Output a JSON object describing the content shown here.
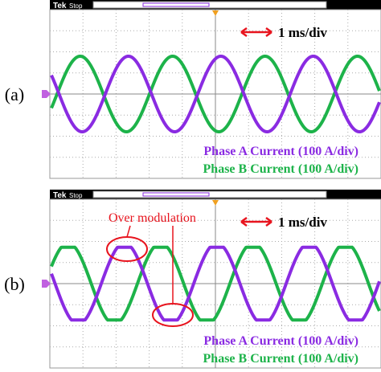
{
  "panels": [
    {
      "label": "(a)",
      "scope_brand": "Tek",
      "scope_state": "Stop",
      "timebase": "1 ms/div",
      "traces": [
        "Phase A Current (100 A/div)",
        "Phase B Current (100 A/div)"
      ]
    },
    {
      "label": "(b)",
      "scope_brand": "Tek",
      "scope_state": "Stop",
      "timebase": "1 ms/div",
      "traces": [
        "Phase A Current (100 A/div)",
        "Phase B Current (100 A/div)"
      ],
      "annotation": "Over modulation"
    }
  ]
}
